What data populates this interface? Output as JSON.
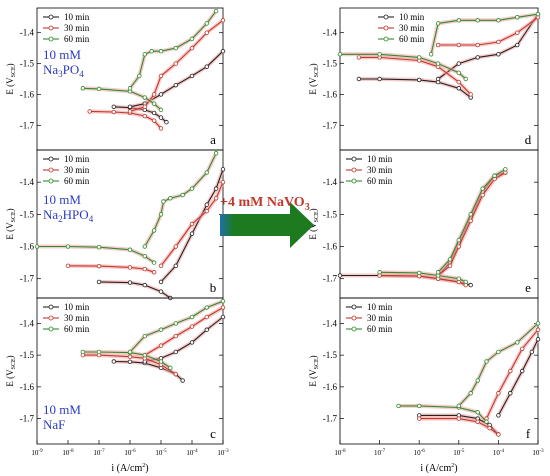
{
  "figure": {
    "arrow_text": "+4 mM NaVO",
    "arrow_sub": "3",
    "arrow_color": "#1e7a1e",
    "arrow_text_color": "#c0392b"
  },
  "styles": {
    "series_colors": {
      "10 min": "#222222",
      "30 min": "#c0392b",
      "60 min": "#2e8b2e"
    },
    "halo_color": "#f2a0a0",
    "series_markers": "hollow-circle"
  },
  "chart_data": [
    {
      "type": "line",
      "panel_label": "a",
      "annotation": [
        "10 mM",
        "Na3PO4"
      ],
      "ylabel": "E (VSCE)",
      "xlabel": "",
      "xlim": [
        1e-09,
        0.001
      ],
      "x_scale": "log",
      "ylim": [
        -1.78,
        -1.32
      ],
      "yticks": [
        -1.7,
        -1.6,
        -1.5,
        -1.4
      ],
      "ytick_labels": [
        "-1.7",
        "-1.6",
        "-1.5",
        "-1.4"
      ],
      "xticks": [],
      "xtick_labels": [],
      "legend": "top-left",
      "series": [
        {
          "name": "10 min",
          "cathodic": {
            "x": [
              3e-07,
              1e-06,
              3e-06,
              6e-06,
              1e-05,
              1.5e-05
            ],
            "y": [
              -1.64,
              -1.643,
              -1.65,
              -1.66,
              -1.675,
              -1.69
            ]
          },
          "anodic": {
            "x": [
              1e-06,
              3e-06,
              1e-05,
              3e-05,
              0.0001,
              0.0003,
              0.001
            ],
            "y": [
              -1.64,
              -1.63,
              -1.6,
              -1.57,
              -1.54,
              -1.51,
              -1.46
            ]
          }
        },
        {
          "name": "30 min",
          "cathodic": {
            "x": [
              5e-08,
              3e-07,
              1e-06,
              3e-06,
              6e-06,
              1e-05
            ],
            "y": [
              -1.655,
              -1.657,
              -1.66,
              -1.67,
              -1.685,
              -1.71
            ]
          },
          "anodic": {
            "x": [
              1e-06,
              3e-06,
              6e-06,
              1e-05,
              3e-05,
              0.0001,
              0.0003,
              0.001
            ],
            "y": [
              -1.655,
              -1.64,
              -1.6,
              -1.54,
              -1.5,
              -1.45,
              -1.4,
              -1.36
            ]
          }
        },
        {
          "name": "60 min",
          "cathodic": {
            "x": [
              3e-08,
              1e-07,
              1e-06,
              3e-06,
              6e-06,
              1e-05
            ],
            "y": [
              -1.58,
              -1.582,
              -1.59,
              -1.61,
              -1.63,
              -1.65
            ]
          },
          "anodic": {
            "x": [
              1e-06,
              2e-06,
              3e-06,
              5e-06,
              1e-05,
              3e-05,
              0.0001,
              0.0003,
              0.0006
            ],
            "y": [
              -1.58,
              -1.54,
              -1.47,
              -1.46,
              -1.46,
              -1.45,
              -1.42,
              -1.37,
              -1.33
            ]
          }
        }
      ]
    },
    {
      "type": "line",
      "panel_label": "b",
      "annotation": [
        "10 mM",
        "Na2HPO4"
      ],
      "ylabel": "E (VSCE)",
      "xlabel": "",
      "xlim": [
        1e-09,
        0.001
      ],
      "x_scale": "log",
      "ylim": [
        -1.76,
        -1.3
      ],
      "yticks": [
        -1.7,
        -1.6,
        -1.5,
        -1.4
      ],
      "ytick_labels": [
        "-1.7",
        "-1.6",
        "-1.5",
        "-1.4"
      ],
      "xticks": [],
      "xtick_labels": [],
      "legend": "top-left",
      "series": [
        {
          "name": "10 min",
          "cathodic": {
            "x": [
              1e-07,
              1e-06,
              3e-06,
              1e-05,
              2e-05
            ],
            "y": [
              -1.71,
              -1.712,
              -1.72,
              -1.74,
              -1.76
            ]
          },
          "anodic": {
            "x": [
              1e-05,
              3e-05,
              0.0001,
              0.0003,
              0.0006,
              0.001
            ],
            "y": [
              -1.71,
              -1.66,
              -1.56,
              -1.47,
              -1.42,
              -1.36
            ]
          }
        },
        {
          "name": "30 min",
          "cathodic": {
            "x": [
              1e-08,
              1e-07,
              1e-06,
              3e-06,
              6e-06
            ],
            "y": [
              -1.66,
              -1.661,
              -1.665,
              -1.67,
              -1.68
            ]
          },
          "anodic": {
            "x": [
              1e-05,
              3e-05,
              0.0001,
              0.0003,
              0.0006,
              0.001
            ],
            "y": [
              -1.66,
              -1.6,
              -1.53,
              -1.49,
              -1.45,
              -1.4
            ]
          }
        },
        {
          "name": "60 min",
          "cathodic": {
            "x": [
              1e-09,
              1e-08,
              1e-07,
              1e-06,
              3e-06,
              6e-06
            ],
            "y": [
              -1.6,
              -1.6,
              -1.602,
              -1.61,
              -1.63,
              -1.65
            ]
          },
          "anodic": {
            "x": [
              3e-06,
              6e-06,
              1e-05,
              1.2e-05,
              2e-05,
              5e-05,
              0.0001,
              0.0003,
              0.0006
            ],
            "y": [
              -1.6,
              -1.55,
              -1.5,
              -1.46,
              -1.45,
              -1.44,
              -1.42,
              -1.37,
              -1.31
            ]
          }
        }
      ]
    },
    {
      "type": "line",
      "panel_label": "c",
      "annotation": [
        "10 mM",
        "NaF"
      ],
      "ylabel": "E (VSCE)",
      "xlabel": "i (A/cm2)",
      "xlim": [
        1e-09,
        0.001
      ],
      "x_scale": "log",
      "ylim": [
        -1.78,
        -1.32
      ],
      "yticks": [
        -1.7,
        -1.6,
        -1.5,
        -1.4
      ],
      "ytick_labels": [
        "-1.7",
        "-1.6",
        "-1.5",
        "-1.4"
      ],
      "xticks": [
        1e-09,
        1e-08,
        1e-07,
        1e-06,
        1e-05,
        0.0001,
        0.001
      ],
      "xtick_labels": [
        "10-9",
        "10-8",
        "10-7",
        "10-6",
        "10-5",
        "10-4",
        "10-3"
      ],
      "legend": "top-left",
      "series": [
        {
          "name": "10 min",
          "cathodic": {
            "x": [
              3e-07,
              1e-06,
              3e-06,
              1e-05,
              3e-05,
              5e-05
            ],
            "y": [
              -1.52,
              -1.521,
              -1.525,
              -1.54,
              -1.56,
              -1.58
            ]
          },
          "anodic": {
            "x": [
              3e-06,
              1e-05,
              3e-05,
              0.0001,
              0.0003,
              0.001
            ],
            "y": [
              -1.52,
              -1.51,
              -1.49,
              -1.46,
              -1.42,
              -1.38
            ]
          }
        },
        {
          "name": "30 min",
          "cathodic": {
            "x": [
              3e-08,
              1e-07,
              1e-06,
              3e-06,
              1e-05,
              3e-05
            ],
            "y": [
              -1.5,
              -1.5,
              -1.505,
              -1.51,
              -1.53,
              -1.56
            ]
          },
          "anodic": {
            "x": [
              3e-06,
              1e-05,
              3e-05,
              0.0001,
              0.0003,
              0.001
            ],
            "y": [
              -1.5,
              -1.47,
              -1.44,
              -1.41,
              -1.38,
              -1.35
            ]
          }
        },
        {
          "name": "60 min",
          "cathodic": {
            "x": [
              3e-08,
              1e-07,
              1e-06,
              3e-06,
              1e-05,
              2e-05
            ],
            "y": [
              -1.49,
              -1.49,
              -1.492,
              -1.5,
              -1.52,
              -1.54
            ]
          },
          "anodic": {
            "x": [
              1e-06,
              3e-06,
              1e-05,
              3e-05,
              0.0001,
              0.0003,
              0.001
            ],
            "y": [
              -1.49,
              -1.44,
              -1.42,
              -1.4,
              -1.38,
              -1.35,
              -1.33
            ]
          }
        }
      ]
    },
    {
      "type": "line",
      "panel_label": "d",
      "annotation": [],
      "ylabel": "E (VSCE)",
      "xlabel": "",
      "xlim": [
        1e-08,
        0.001
      ],
      "x_scale": "log",
      "ylim": [
        -1.78,
        -1.32
      ],
      "yticks": [
        -1.7,
        -1.6,
        -1.5,
        -1.4
      ],
      "ytick_labels": [
        "-1.7",
        "-1.6",
        "-1.5",
        "-1.4"
      ],
      "xticks": [],
      "xtick_labels": [],
      "legend": "top-center",
      "series": [
        {
          "name": "10 min",
          "cathodic": {
            "x": [
              3e-08,
              1e-07,
              1e-06,
              3e-06,
              1e-05,
              2e-05
            ],
            "y": [
              -1.55,
              -1.55,
              -1.553,
              -1.56,
              -1.58,
              -1.61
            ]
          },
          "anodic": {
            "x": [
              3e-06,
              1e-05,
              3e-05,
              0.0001,
              0.0003,
              0.001
            ],
            "y": [
              -1.55,
              -1.5,
              -1.48,
              -1.47,
              -1.44,
              -1.34
            ]
          }
        },
        {
          "name": "30 min",
          "cathodic": {
            "x": [
              3e-08,
              1e-07,
              1e-06,
              3e-06,
              1e-05,
              2e-05
            ],
            "y": [
              -1.48,
              -1.48,
              -1.49,
              -1.51,
              -1.56,
              -1.6
            ]
          },
          "anodic": {
            "x": [
              3e-06,
              1e-05,
              3e-05,
              0.0001,
              0.0003,
              0.001
            ],
            "y": [
              -1.44,
              -1.44,
              -1.44,
              -1.43,
              -1.4,
              -1.35
            ]
          }
        },
        {
          "name": "60 min",
          "cathodic": {
            "x": [
              1e-08,
              1e-07,
              1e-06,
              3e-06,
              1e-05,
              1.5e-05
            ],
            "y": [
              -1.47,
              -1.47,
              -1.48,
              -1.5,
              -1.53,
              -1.55
            ]
          },
          "anodic": {
            "x": [
              2e-06,
              3e-06,
              1e-05,
              3e-05,
              0.0001,
              0.0003,
              0.001
            ],
            "y": [
              -1.47,
              -1.37,
              -1.36,
              -1.36,
              -1.36,
              -1.35,
              -1.34
            ]
          }
        }
      ]
    },
    {
      "type": "line",
      "panel_label": "e",
      "annotation": [],
      "ylabel": "E (VSCE)",
      "xlabel": "",
      "xlim": [
        1e-08,
        0.001
      ],
      "x_scale": "log",
      "ylim": [
        -1.76,
        -1.3
      ],
      "yticks": [
        -1.7,
        -1.6,
        -1.5,
        -1.4
      ],
      "ytick_labels": [
        "-1.7",
        "-1.6",
        "-1.5",
        "-1.4"
      ],
      "xticks": [],
      "xtick_labels": [],
      "legend": "top-left",
      "series": [
        {
          "name": "10 min",
          "cathodic": {
            "x": [
              1e-08,
              1e-07,
              1e-06,
              3e-06,
              1e-05,
              2e-05
            ],
            "y": [
              -1.69,
              -1.69,
              -1.692,
              -1.7,
              -1.71,
              -1.72
            ]
          },
          "anodic": {
            "x": [
              3e-06,
              6e-06,
              1e-05,
              2e-05,
              4e-05,
              8e-05,
              0.00015
            ],
            "y": [
              -1.69,
              -1.65,
              -1.59,
              -1.51,
              -1.43,
              -1.38,
              -1.37
            ]
          }
        },
        {
          "name": "30 min",
          "cathodic": {
            "x": [
              1e-07,
              1e-06,
              3e-06,
              1e-05,
              1.5e-05
            ],
            "y": [
              -1.69,
              -1.692,
              -1.7,
              -1.71,
              -1.72
            ]
          },
          "anodic": {
            "x": [
              3e-06,
              6e-06,
              1e-05,
              2e-05,
              4e-05,
              8e-05,
              0.00015
            ],
            "y": [
              -1.69,
              -1.66,
              -1.6,
              -1.52,
              -1.44,
              -1.39,
              -1.37
            ]
          }
        },
        {
          "name": "60 min",
          "cathodic": {
            "x": [
              1e-07,
              1e-06,
              3e-06,
              1e-05,
              1.5e-05
            ],
            "y": [
              -1.68,
              -1.682,
              -1.69,
              -1.7,
              -1.71
            ]
          },
          "anodic": {
            "x": [
              3e-06,
              6e-06,
              1e-05,
              2e-05,
              4e-05,
              8e-05,
              0.00015
            ],
            "y": [
              -1.68,
              -1.64,
              -1.58,
              -1.5,
              -1.42,
              -1.38,
              -1.36
            ]
          }
        }
      ]
    },
    {
      "type": "line",
      "panel_label": "f",
      "annotation": [],
      "ylabel": "E (VSCE)",
      "xlabel": "i (A/cm2)",
      "xlim": [
        1e-08,
        0.001
      ],
      "x_scale": "log",
      "ylim": [
        -1.78,
        -1.32
      ],
      "yticks": [
        -1.7,
        -1.6,
        -1.5,
        -1.4
      ],
      "ytick_labels": [
        "-1.7",
        "-1.6",
        "-1.5",
        "-1.4"
      ],
      "xticks": [
        1e-08,
        1e-07,
        1e-06,
        1e-05,
        0.0001,
        0.001
      ],
      "xtick_labels": [
        "10-8",
        "10-7",
        "10-6",
        "10-5",
        "10-4",
        "10-3"
      ],
      "legend": "top-left",
      "series": [
        {
          "name": "10 min",
          "cathodic": {
            "x": [
              1e-06,
              1e-05,
              3e-05,
              6e-05,
              0.0001
            ],
            "y": [
              -1.69,
              -1.69,
              -1.7,
              -1.72,
              -1.75
            ]
          },
          "anodic": {
            "x": [
              0.0001,
              0.0002,
              0.0004,
              0.0007,
              0.001
            ],
            "y": [
              -1.69,
              -1.62,
              -1.55,
              -1.49,
              -1.45
            ]
          }
        },
        {
          "name": "30 min",
          "cathodic": {
            "x": [
              1e-06,
              1e-05,
              3e-05,
              6e-05,
              0.0001
            ],
            "y": [
              -1.7,
              -1.7,
              -1.71,
              -1.73,
              -1.75
            ]
          },
          "anodic": {
            "x": [
              5e-05,
              0.0001,
              0.0002,
              0.0004,
              0.001
            ],
            "y": [
              -1.7,
              -1.62,
              -1.55,
              -1.48,
              -1.42
            ]
          }
        },
        {
          "name": "60 min",
          "cathodic": {
            "x": [
              3e-07,
              1e-06,
              1e-05,
              3e-05,
              5e-05
            ],
            "y": [
              -1.66,
              -1.66,
              -1.665,
              -1.68,
              -1.71
            ]
          },
          "anodic": {
            "x": [
              1e-05,
              2e-05,
              3e-05,
              5e-05,
              0.0001,
              0.0003,
              0.001
            ],
            "y": [
              -1.66,
              -1.62,
              -1.58,
              -1.52,
              -1.49,
              -1.46,
              -1.4
            ]
          }
        }
      ]
    }
  ]
}
